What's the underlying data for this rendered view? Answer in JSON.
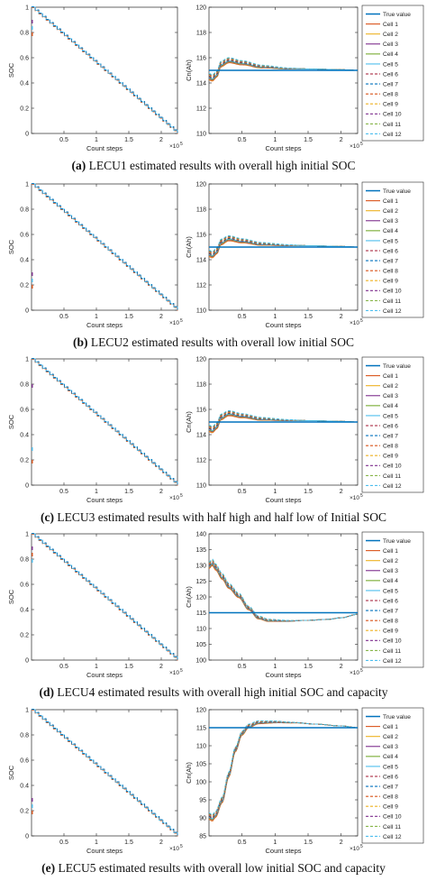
{
  "colors": {
    "true_value": "#0072BD",
    "cells": [
      "#D95319",
      "#EDB120",
      "#7E2F8E",
      "#77AC30",
      "#4DBEEE",
      "#A2142F",
      "#0072BD",
      "#D95319",
      "#EDB120",
      "#7E2F8E",
      "#77AC30",
      "#4DBEEE"
    ]
  },
  "captions": [
    {
      "label": "(a)",
      "text": " LECU1 estimated results with overall high initial SOC"
    },
    {
      "label": "(b)",
      "text": " LECU2 estimated results with overall low initial SOC"
    },
    {
      "label": "(c)",
      "text": " LECU3 estimated results with half high and half low of Initial SOC"
    },
    {
      "label": "(d)",
      "text": " LECU4 estimated results with overall high initial SOC and capacity"
    },
    {
      "label": "(e)",
      "text": " LECU5 estimated results with overall low initial SOC and capacity"
    }
  ],
  "chart_data": [
    {
      "panel": "a",
      "side": "left",
      "type": "line",
      "xlabel": "Count steps",
      "ylabel": "SOC",
      "xlim": [
        0,
        2.25
      ],
      "ylim": [
        0,
        1
      ],
      "x_exponent": "×10^5",
      "xticks": [
        "0.5",
        "1",
        "1.5",
        "2"
      ],
      "yticks": [
        "0",
        "0.2",
        "0.4",
        "0.6",
        "0.8",
        "1"
      ],
      "series": [
        {
          "name": "SOC estimate",
          "x": [
            0,
            2.25
          ],
          "values": [
            1,
            0
          ]
        }
      ],
      "initial_values": [
        0.8,
        0.9,
        0.85
      ]
    },
    {
      "panel": "a",
      "side": "right",
      "type": "line",
      "xlabel": "Count steps",
      "ylabel": "Cn(Ah)",
      "xlim": [
        0,
        2.25
      ],
      "ylim": [
        110,
        120
      ],
      "x_exponent": "×10^5",
      "xticks": [
        "0.5",
        "1",
        "1.5",
        "2"
      ],
      "yticks": [
        "110",
        "112",
        "114",
        "116",
        "118",
        "120"
      ],
      "legend": [
        "True value",
        "Cell 1",
        "Cell 2",
        "Cell 3",
        "Cell 4",
        "Cell 5",
        "Cell 6",
        "Cell 7",
        "Cell 8",
        "Cell 9",
        "Cell 10",
        "Cell 11",
        "Cell 12"
      ],
      "legend_position": "outside-right",
      "true_value": 115,
      "cell_curve": {
        "x": [
          0,
          0.05,
          0.12,
          0.18,
          0.3,
          0.5,
          0.8,
          1.2,
          1.6,
          2.0,
          2.25
        ],
        "values": [
          114.5,
          114.4,
          114.7,
          115.5,
          115.8,
          115.6,
          115.3,
          115.15,
          115.1,
          115.05,
          115.0
        ]
      }
    },
    {
      "panel": "b",
      "side": "left",
      "type": "line",
      "xlabel": "Count steps",
      "ylabel": "SOC",
      "xlim": [
        0,
        2.25
      ],
      "ylim": [
        0,
        1
      ],
      "x_exponent": "×10^5",
      "xticks": [
        "0.5",
        "1",
        "1.5",
        "2"
      ],
      "yticks": [
        "0",
        "0.2",
        "0.4",
        "0.6",
        "0.8",
        "1"
      ],
      "series": [
        {
          "name": "SOC estimate",
          "x": [
            0,
            2.25
          ],
          "values": [
            1,
            0
          ]
        }
      ],
      "initial_values": [
        0.2,
        0.3,
        0.25
      ]
    },
    {
      "panel": "b",
      "side": "right",
      "type": "line",
      "xlabel": "Count steps",
      "ylabel": "Cn(Ah)",
      "xlim": [
        0,
        2.25
      ],
      "ylim": [
        110,
        120
      ],
      "x_exponent": "×10^5",
      "xticks": [
        "0.5",
        "1",
        "1.5",
        "2"
      ],
      "yticks": [
        "110",
        "112",
        "114",
        "116",
        "118",
        "120"
      ],
      "legend": [
        "True value",
        "Cell 1",
        "Cell 2",
        "Cell 3",
        "Cell 4",
        "Cell 5",
        "Cell 6",
        "Cell 7",
        "Cell 8",
        "Cell 9",
        "Cell 10",
        "Cell 11",
        "Cell 12"
      ],
      "legend_position": "outside-right",
      "true_value": 115,
      "cell_curve": {
        "x": [
          0,
          0.05,
          0.12,
          0.18,
          0.3,
          0.5,
          0.8,
          1.2,
          1.6,
          2.0,
          2.25
        ],
        "values": [
          114.5,
          114.4,
          114.7,
          115.4,
          115.7,
          115.5,
          115.25,
          115.15,
          115.1,
          115.05,
          115.0
        ]
      }
    },
    {
      "panel": "c",
      "side": "left",
      "type": "line",
      "xlabel": "Count steps",
      "ylabel": "SOC",
      "xlim": [
        0,
        2.25
      ],
      "ylim": [
        0,
        1
      ],
      "x_exponent": "×10^5",
      "xticks": [
        "0.5",
        "1",
        "1.5",
        "2"
      ],
      "yticks": [
        "0",
        "0.2",
        "0.4",
        "0.6",
        "0.8",
        "1"
      ],
      "series": [
        {
          "name": "SOC estimate",
          "x": [
            0,
            2.25
          ],
          "values": [
            1,
            0
          ]
        }
      ],
      "initial_values": [
        0.2,
        0.8,
        0.3
      ]
    },
    {
      "panel": "c",
      "side": "right",
      "type": "line",
      "xlabel": "Count steps",
      "ylabel": "Cn(Ah)",
      "xlim": [
        0,
        2.25
      ],
      "ylim": [
        110,
        120
      ],
      "x_exponent": "×10^5",
      "xticks": [
        "0.5",
        "1",
        "1.5",
        "2"
      ],
      "yticks": [
        "110",
        "112",
        "114",
        "116",
        "118",
        "120"
      ],
      "legend": [
        "True value",
        "Cell 1",
        "Cell 2",
        "Cell 3",
        "Cell 4",
        "Cell 5",
        "Cell 6",
        "Cell 7",
        "Cell 8",
        "Cell 9",
        "Cell 10",
        "Cell 11",
        "Cell 12"
      ],
      "legend_position": "outside-right",
      "true_value": 115,
      "cell_curve": {
        "x": [
          0,
          0.05,
          0.12,
          0.18,
          0.3,
          0.5,
          0.8,
          1.2,
          1.6,
          2.0,
          2.25
        ],
        "values": [
          114.5,
          114.4,
          114.7,
          115.4,
          115.7,
          115.5,
          115.25,
          115.15,
          115.1,
          115.05,
          115.0
        ]
      }
    },
    {
      "panel": "d",
      "side": "left",
      "type": "line",
      "xlabel": "Count steps",
      "ylabel": "SOC",
      "xlim": [
        0,
        2.25
      ],
      "ylim": [
        0,
        1
      ],
      "x_exponent": "×10^5",
      "xticks": [
        "0.5",
        "1",
        "1.5",
        "2"
      ],
      "yticks": [
        "0",
        "0.2",
        "0.4",
        "0.6",
        "0.8",
        "1"
      ],
      "series": [
        {
          "name": "SOC estimate",
          "x": [
            0,
            2.25
          ],
          "values": [
            1,
            0
          ]
        }
      ],
      "initial_values": [
        0.85,
        0.9,
        0.8
      ]
    },
    {
      "panel": "d",
      "side": "right",
      "type": "line",
      "xlabel": "Count steps",
      "ylabel": "Cn(Ah)",
      "xlim": [
        0,
        2.25
      ],
      "ylim": [
        100,
        140
      ],
      "x_exponent": "×10^5",
      "xticks": [
        "0.5",
        "1",
        "1.5",
        "2"
      ],
      "yticks": [
        "100",
        "105",
        "110",
        "115",
        "120",
        "125",
        "130",
        "135",
        "140"
      ],
      "legend": [
        "True value",
        "Cell 1",
        "Cell 2",
        "Cell 3",
        "Cell 4",
        "Cell 5",
        "Cell 6",
        "Cell 7",
        "Cell 8",
        "Cell 9",
        "Cell 10",
        "Cell 11",
        "Cell 12"
      ],
      "legend_position": "outside-right",
      "true_value": 115,
      "cell_curve": {
        "x": [
          0,
          0.05,
          0.1,
          0.2,
          0.3,
          0.45,
          0.6,
          0.75,
          0.9,
          1.2,
          1.5,
          1.8,
          2.0,
          2.25
        ],
        "values": [
          130,
          131,
          129.5,
          126.5,
          123.5,
          120.5,
          116.5,
          113.5,
          112.6,
          112.4,
          112.6,
          112.9,
          113.4,
          114.5
        ]
      }
    },
    {
      "panel": "e",
      "side": "left",
      "type": "line",
      "xlabel": "Count steps",
      "ylabel": "SOC",
      "xlim": [
        0,
        2.25
      ],
      "ylim": [
        0,
        1
      ],
      "x_exponent": "×10^5",
      "xticks": [
        "0.5",
        "1",
        "1.5",
        "2"
      ],
      "yticks": [
        "0",
        "0.2",
        "0.4",
        "0.6",
        "0.8",
        "1"
      ],
      "series": [
        {
          "name": "SOC estimate",
          "x": [
            0,
            2.25
          ],
          "values": [
            1,
            0
          ]
        }
      ],
      "initial_values": [
        0.2,
        0.3,
        0.25
      ]
    },
    {
      "panel": "e",
      "side": "right",
      "type": "line",
      "xlabel": "Count steps",
      "ylabel": "Cn(Ah)",
      "xlim": [
        0,
        2.25
      ],
      "ylim": [
        85,
        120
      ],
      "x_exponent": "×10^5",
      "xticks": [
        "0.5",
        "1",
        "1.5",
        "2"
      ],
      "yticks": [
        "85",
        "90",
        "95",
        "100",
        "105",
        "110",
        "115",
        "120"
      ],
      "legend": [
        "True value",
        "Cell 1",
        "Cell 2",
        "Cell 3",
        "Cell 4",
        "Cell 5",
        "Cell 6",
        "Cell 7",
        "Cell 8",
        "Cell 9",
        "Cell 10",
        "Cell 11",
        "Cell 12"
      ],
      "legend_position": "outside-right",
      "true_value": 115,
      "cell_curve": {
        "x": [
          0,
          0.05,
          0.1,
          0.2,
          0.3,
          0.4,
          0.5,
          0.6,
          0.75,
          1.0,
          1.3,
          1.6,
          2.0,
          2.25
        ],
        "values": [
          90.5,
          90,
          91,
          95,
          102,
          109,
          113.5,
          115.5,
          116.5,
          116.6,
          116.4,
          116,
          115.5,
          115
        ]
      }
    }
  ]
}
